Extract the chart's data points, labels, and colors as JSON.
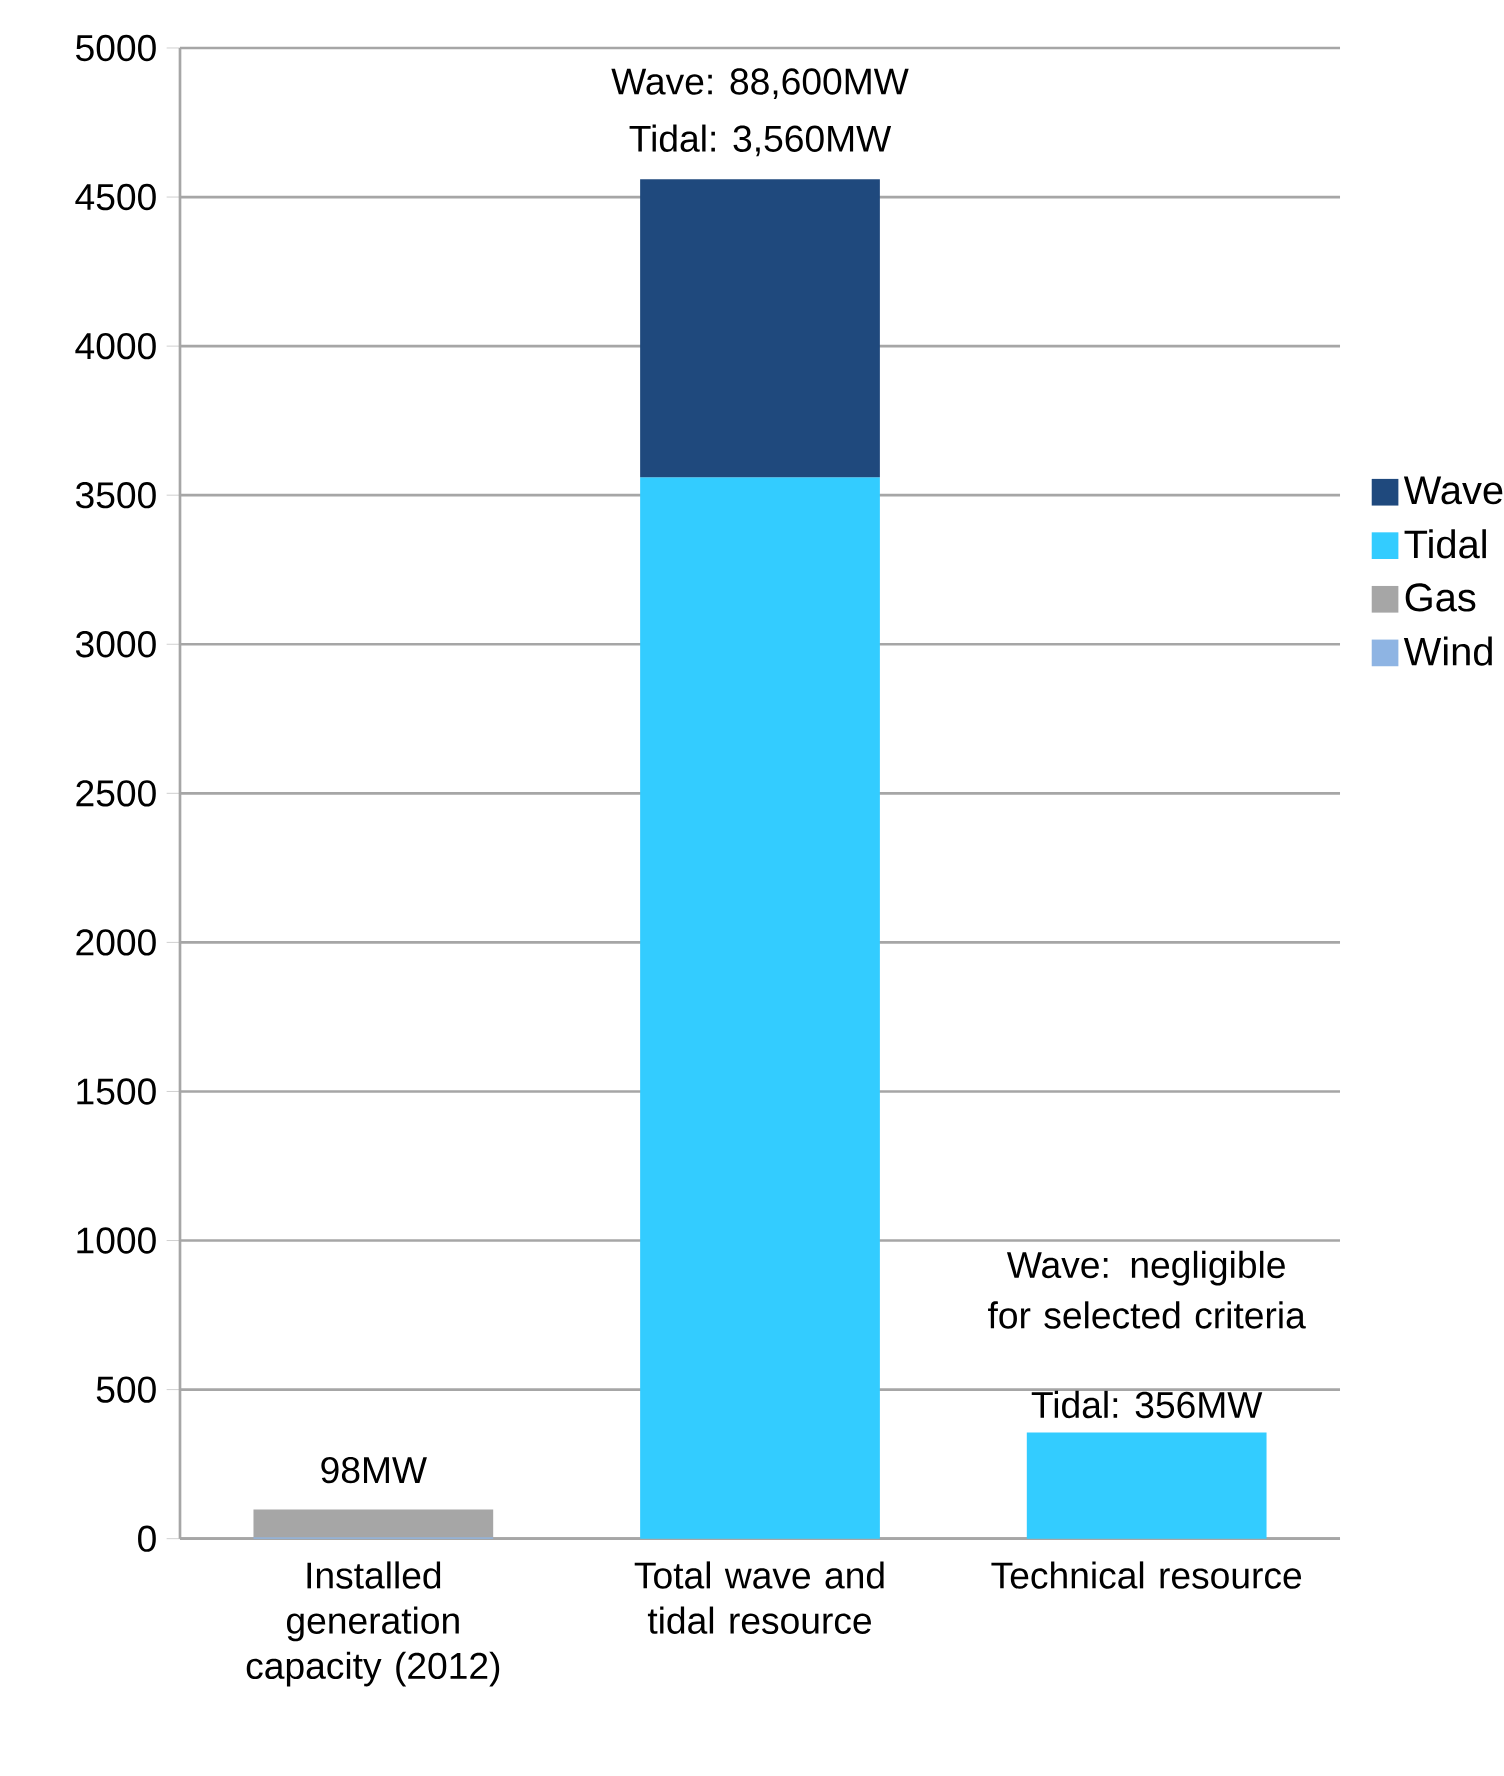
{
  "chart_data": {
    "type": "bar",
    "stacked": true,
    "categories": [
      "Installed generation capacity (2012)",
      "Total wave and tidal resource",
      "Technical resource"
    ],
    "series": [
      {
        "name": "Wind",
        "color": "#8eb4e3",
        "values": [
          5,
          null,
          null
        ]
      },
      {
        "name": "Gas",
        "color": "#a6a6a6",
        "values": [
          93,
          null,
          null
        ]
      },
      {
        "name": "Tidal",
        "color": "#33ccff",
        "values": [
          null,
          3560,
          356
        ]
      },
      {
        "name": "Wave",
        "color": "#1f497d",
        "values": [
          null,
          1000,
          null
        ]
      }
    ],
    "ylim": [
      0,
      5000
    ],
    "yticks": [
      0,
      500,
      1000,
      1500,
      2000,
      2500,
      3000,
      3500,
      4000,
      4500,
      5000
    ],
    "grid": "y",
    "legend": "right",
    "annotations": [
      "Wave: 88,600MW",
      "Tidal: 3,560MW",
      "98MW",
      "Wave: negligible for selected criteria",
      "Tidal: 356MW"
    ]
  }
}
